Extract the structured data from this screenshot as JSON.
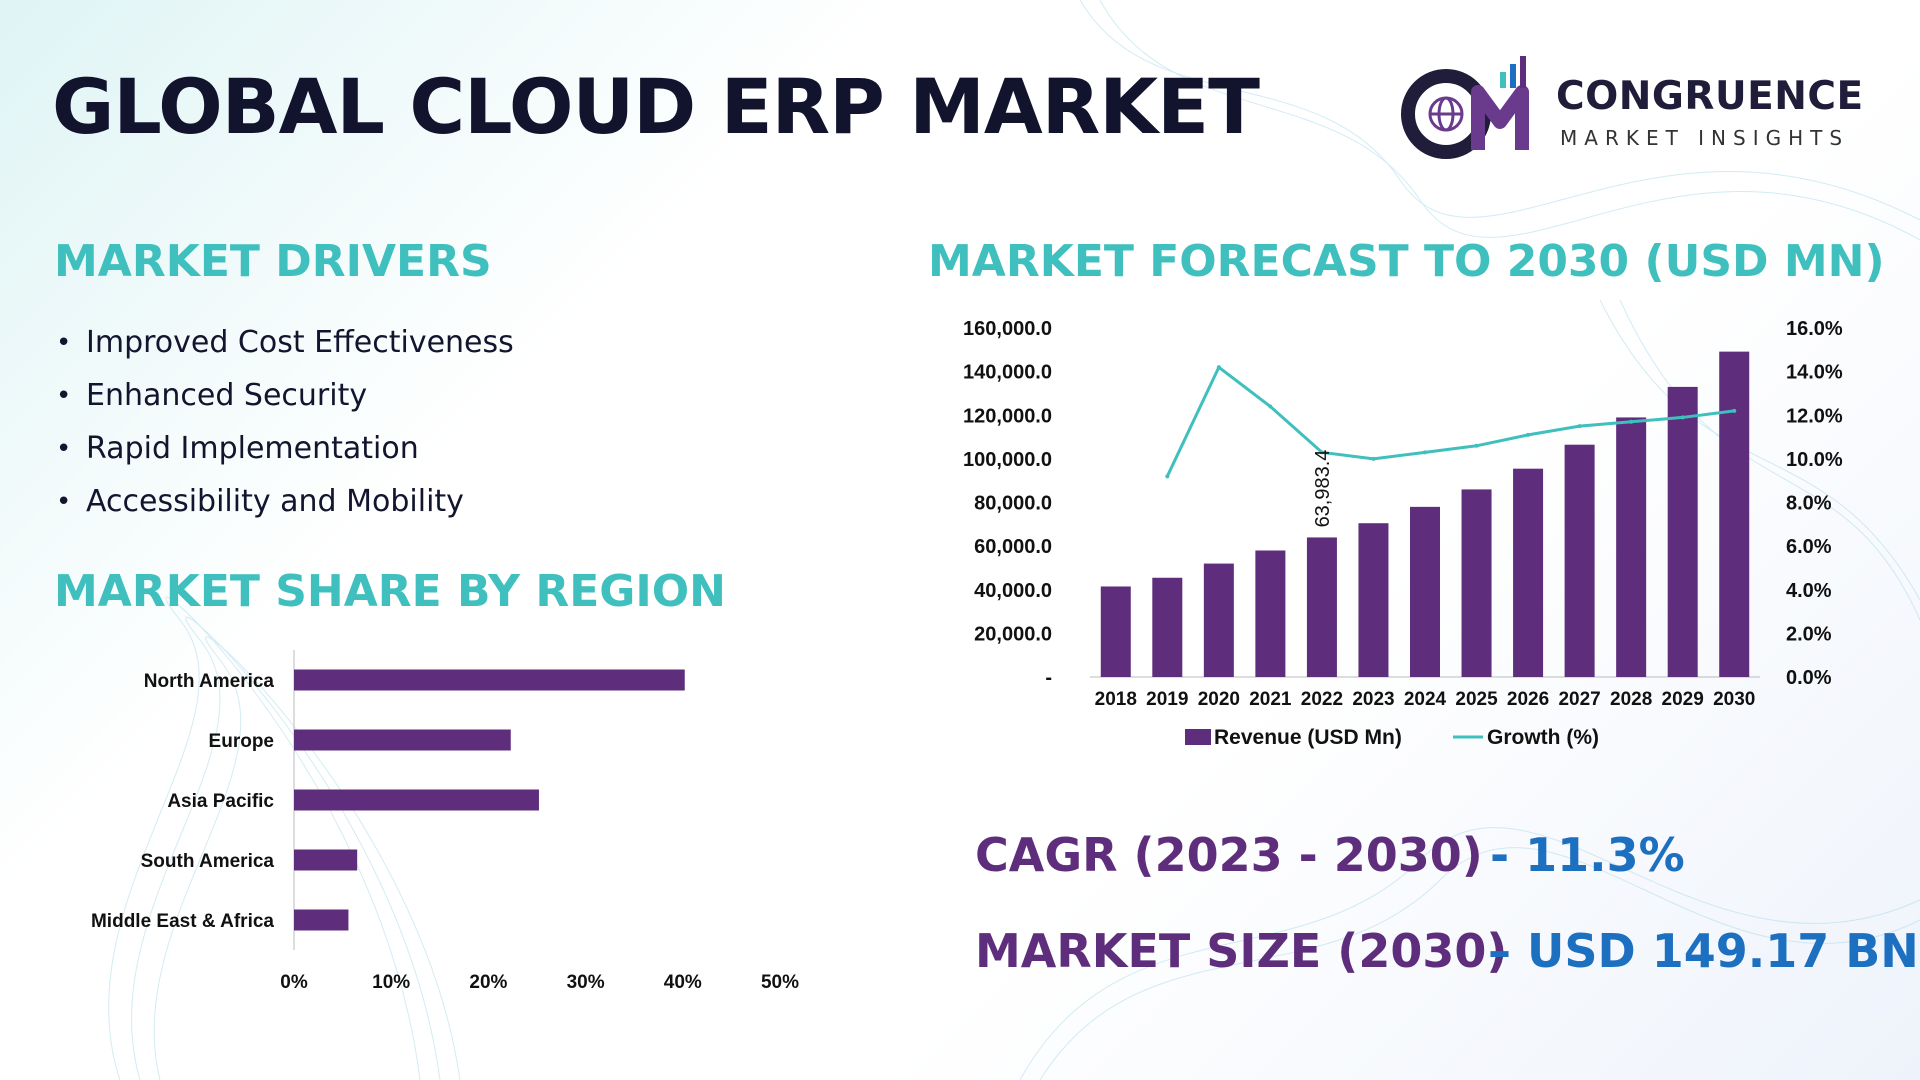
{
  "title": "GLOBAL CLOUD ERP MARKET",
  "logo": {
    "name": "CONGRUENCE",
    "subtitle": "MARKET INSIGHTS"
  },
  "drivers": {
    "heading": "MARKET DRIVERS",
    "items": [
      "Improved Cost Effectiveness",
      "Enhanced Security",
      "Rapid Implementation",
      "Accessibility and Mobility"
    ]
  },
  "forecast_heading": "MARKET FORECAST TO 2030 (USD MN)",
  "region_heading": "MARKET SHARE BY REGION",
  "cagr": {
    "label": "CAGR (2023 - 2030)",
    "value": "- 11.3%"
  },
  "market_size": {
    "label": "MARKET SIZE (2030)",
    "value": "– USD 149.17 BN"
  },
  "colors": {
    "bar": "#5e2d7c",
    "line": "#3fbfbd",
    "heading": "#3fbfbd",
    "title": "#12142e",
    "value_blue": "#1d6fbf"
  },
  "chart_data": [
    {
      "type": "bar",
      "title": "MARKET FORECAST TO 2030 (USD MN)",
      "categories": [
        "2018",
        "2019",
        "2020",
        "2021",
        "2022",
        "2023",
        "2024",
        "2025",
        "2026",
        "2027",
        "2028",
        "2029",
        "2030"
      ],
      "series": [
        {
          "name": "Revenue (USD Mn)",
          "type": "bar",
          "axis": "left",
          "values": [
            41500,
            45500,
            52000,
            58000,
            63983.4,
            70500,
            78000,
            86000,
            95500,
            106500,
            119000,
            133000,
            149170
          ]
        },
        {
          "name": "Growth (%)",
          "type": "line",
          "axis": "right",
          "values": [
            null,
            9.2,
            14.2,
            12.4,
            10.3,
            10.0,
            10.3,
            10.6,
            11.1,
            11.5,
            11.7,
            11.9,
            12.2
          ]
        }
      ],
      "ylim_left": [
        0,
        160000
      ],
      "ylim_right": [
        0,
        16
      ],
      "left_ticks": [
        "-",
        "20,000.0",
        "40,000.0",
        "60,000.0",
        "80,000.0",
        "100,000.0",
        "120,000.0",
        "140,000.0",
        "160,000.0"
      ],
      "right_ticks": [
        "0.0%",
        "2.0%",
        "4.0%",
        "6.0%",
        "8.0%",
        "10.0%",
        "12.0%",
        "14.0%",
        "16.0%"
      ],
      "data_label": {
        "category": "2022",
        "text": "63,983.4"
      },
      "legend": [
        "Revenue (USD Mn)",
        "Growth (%)"
      ],
      "legend_position": "bottom"
    },
    {
      "type": "bar",
      "orientation": "horizontal",
      "title": "MARKET SHARE BY REGION",
      "categories": [
        "North America",
        "Europe",
        "Asia Pacific",
        "South America",
        "Middle East & Africa"
      ],
      "values": [
        40.2,
        22.3,
        25.2,
        6.5,
        5.6
      ],
      "xlim": [
        0,
        50
      ],
      "x_ticks": [
        "0%",
        "10%",
        "20%",
        "30%",
        "40%",
        "50%"
      ]
    }
  ]
}
